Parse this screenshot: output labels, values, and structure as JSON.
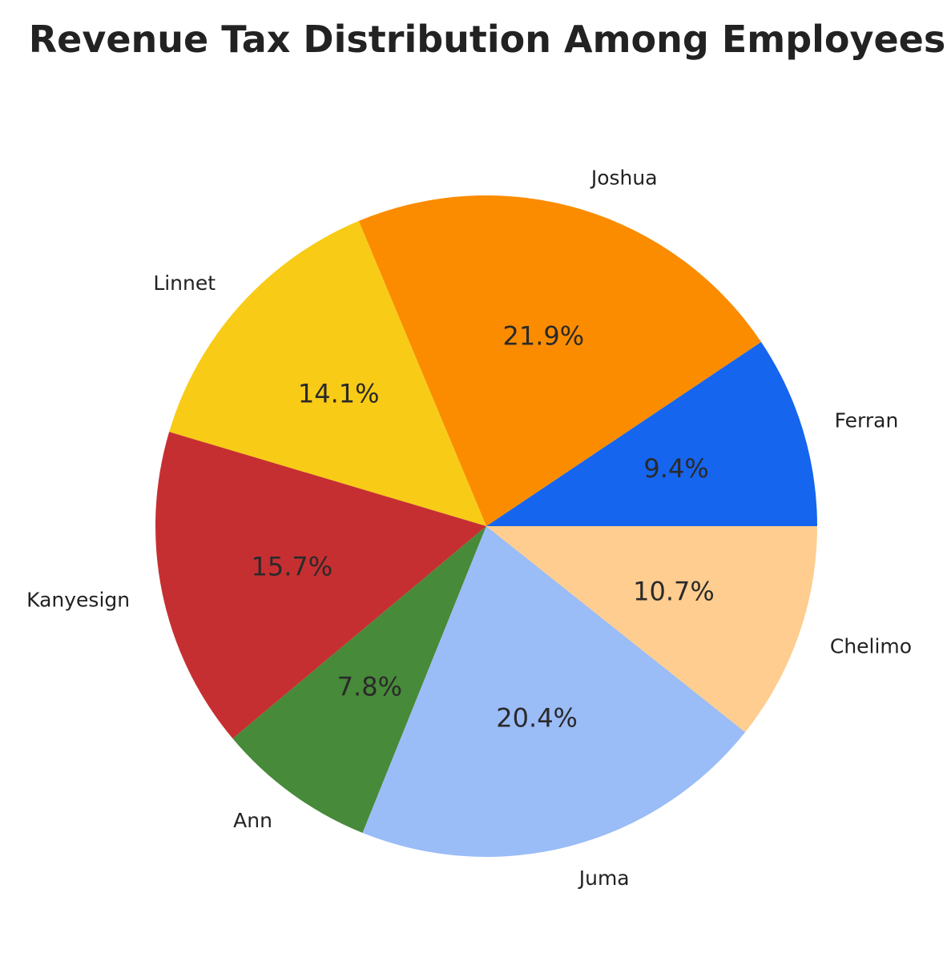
{
  "chart_data": {
    "type": "pie",
    "title": "Revenue Tax Distribution Among Employees",
    "categories": [
      "Ferran",
      "Joshua",
      "Linnet",
      "Kanyesign",
      "Ann",
      "Juma",
      "Chelimo"
    ],
    "values": [
      9.4,
      21.9,
      14.1,
      15.7,
      7.8,
      20.4,
      10.7
    ],
    "labels_pct": [
      "9.4%",
      "21.9%",
      "14.1%",
      "15.7%",
      "7.8%",
      "20.4%",
      "10.7%"
    ],
    "colors": [
      "#1565ee",
      "#fb8c00",
      "#f8cb16",
      "#c62f31",
      "#478a39",
      "#9abcf7",
      "#fecd8f"
    ],
    "start_angle": 0,
    "direction": "counterclockwise"
  }
}
